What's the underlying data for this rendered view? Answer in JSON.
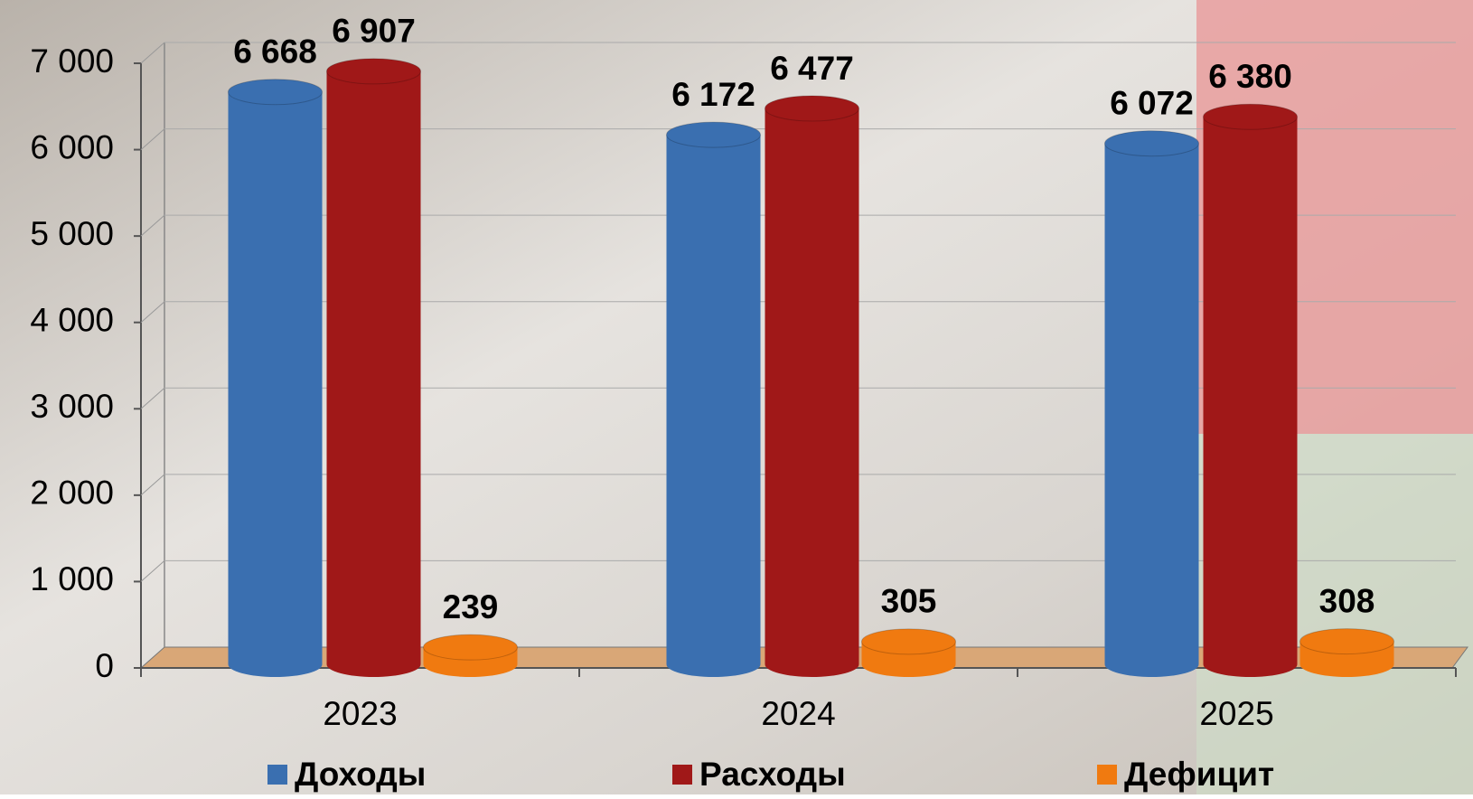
{
  "chart_data": {
    "type": "bar",
    "categories": [
      "2023",
      "2024",
      "2025"
    ],
    "series": [
      {
        "name": "Доходы",
        "color": "#3a6fb0",
        "values": [
          6668,
          6172,
          6072
        ],
        "value_labels": [
          "6 668",
          "6 172",
          "6 072"
        ]
      },
      {
        "name": "Расходы",
        "color": "#a01818",
        "values": [
          6907,
          6477,
          6380
        ],
        "value_labels": [
          "6 907",
          "6 477",
          "6 380"
        ]
      },
      {
        "name": "Дефицит",
        "color": "#f07a10",
        "values": [
          239,
          305,
          308
        ]
      }
    ],
    "ylim": [
      0,
      7000
    ],
    "yticks": [
      0,
      {
        "value": 1000,
        "label": "1 000"
      },
      {
        "value": 2000,
        "label": "2 000"
      },
      {
        "value": 3000,
        "label": "3 000"
      },
      {
        "value": 4000,
        "label": "4 000"
      },
      {
        "value": 5000,
        "label": "5 000"
      },
      {
        "value": 6000,
        "label": "6 000"
      },
      {
        "value": 7000,
        "label": "7 000"
      }
    ],
    "grid": true
  }
}
